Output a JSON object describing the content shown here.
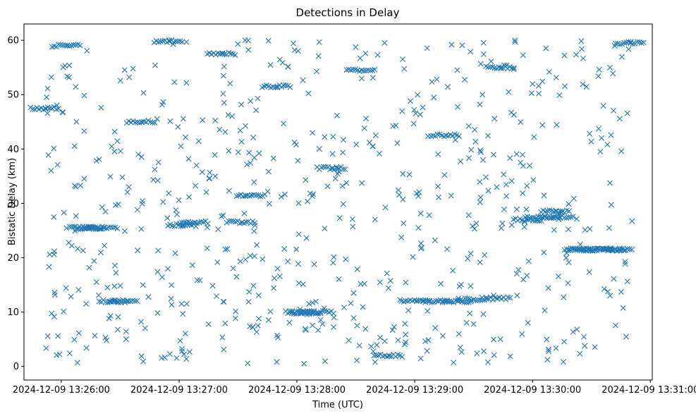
{
  "chart_data": {
    "type": "scatter",
    "title": "Detections in Delay",
    "xlabel": "Time (UTC)",
    "ylabel": "Bistatic Delay (km)",
    "x_ticks": [
      "2024-12-09 13:26:00",
      "2024-12-09 13:27:00",
      "2024-12-09 13:28:00",
      "2024-12-09 13:29:00",
      "2024-12-09 13:30:00",
      "2024-12-09 13:31:00"
    ],
    "y_ticks": [
      "0",
      "10",
      "20",
      "30",
      "40",
      "50",
      "60"
    ],
    "xlim": [
      "2024-12-09 13:25:41",
      "2024-12-09 13:31:01"
    ],
    "ylim": [
      -2.5,
      63
    ],
    "x_range": [
      "2024-12-09 13:25:51",
      "2024-12-09 13:30:51"
    ],
    "grid": false,
    "marker": "x",
    "color": "#1f77b4",
    "point_count": 1200,
    "series": [
      {
        "x": [
          "13:25:52",
          "13:26:03",
          "13:26:15",
          "13:26:27",
          "13:26:41",
          "13:26:55",
          "13:27:08",
          "13:27:22",
          "13:27:37",
          "13:27:50",
          "13:28:04",
          "13:28:18",
          "13:28:33",
          "13:28:47",
          "13:29:01",
          "13:29:16",
          "13:29:30",
          "13:29:44",
          "13:29:58",
          "13:30:12",
          "13:30:26",
          "13:30:40",
          "13:30:50"
        ],
        "y": [
          47.5,
          59.0,
          25.5,
          12.0,
          45.0,
          59.8,
          26.5,
          57.5,
          31.5,
          51.5,
          9.8,
          36.5,
          54.5,
          2.0,
          12.0,
          42.5,
          12.3,
          55.0,
          27.0,
          28.5,
          21.5,
          21.5,
          59.5
        ]
      },
      {
        "x": [
          "13:26:12",
          "13:26:22",
          "13:26:32",
          "13:27:02",
          "13:27:32",
          "13:28:02",
          "13:28:12",
          "13:29:12",
          "13:29:22",
          "13:29:42",
          "13:30:04",
          "13:30:14",
          "13:30:24",
          "13:30:34",
          "13:30:44"
        ],
        "y": [
          25.5,
          25.5,
          12.0,
          26.0,
          26.5,
          10.0,
          10.0,
          12.0,
          12.0,
          12.5,
          27.5,
          27.5,
          21.5,
          21.5,
          21.5
        ]
      }
    ]
  }
}
